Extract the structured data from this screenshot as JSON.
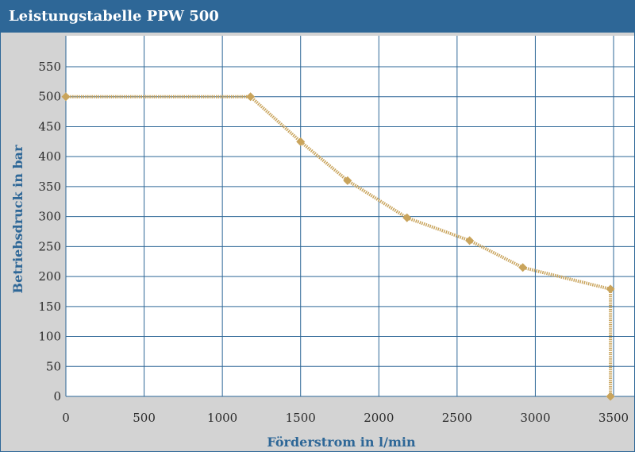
{
  "header": {
    "title": "Leistungstabelle PPW 500"
  },
  "chart_data": {
    "type": "line",
    "title": "Leistungstabelle PPW 500",
    "xlabel": "Förderstrom in l/min",
    "ylabel": "Betriebsdruck in bar",
    "xlim": [
      0,
      3500
    ],
    "ylim": [
      0,
      550
    ],
    "xticks": [
      0,
      500,
      1000,
      1500,
      2000,
      2500,
      3000,
      3500
    ],
    "yticks": [
      0,
      50,
      100,
      150,
      200,
      250,
      300,
      350,
      400,
      450,
      500,
      550
    ],
    "grid": true,
    "series": [
      {
        "color": "#c9a45c",
        "line_style": "dotted",
        "marker": "diamond",
        "points": [
          {
            "x": 0,
            "y": 500
          },
          {
            "x": 1180,
            "y": 500
          },
          {
            "x": 1500,
            "y": 425
          },
          {
            "x": 1800,
            "y": 360
          },
          {
            "x": 2180,
            "y": 298
          },
          {
            "x": 2580,
            "y": 260
          },
          {
            "x": 2920,
            "y": 215
          },
          {
            "x": 3480,
            "y": 179
          },
          {
            "x": 3480,
            "y": 0
          }
        ]
      }
    ]
  },
  "colors": {
    "header_bg": "#2e6797",
    "plot_bg": "#ffffff",
    "grid": "#2e6797",
    "outer_bg": "#d3d3d3",
    "series": "#c9a45c"
  }
}
